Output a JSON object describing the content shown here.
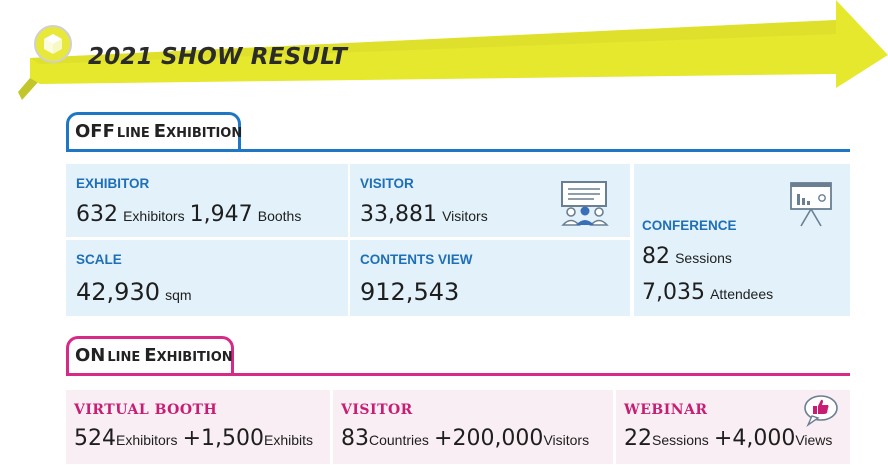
{
  "banner": {
    "title": "2021 SHOW RESULT",
    "icon": "cube-icon"
  },
  "offline": {
    "heading_big1": "OFF",
    "heading_small1": "LINE",
    "heading_big2": "E",
    "heading_small2": "XHIBITION",
    "exhibitor": {
      "label": "EXHIBITOR",
      "v1": "632",
      "u1": "Exhibitors",
      "v2": "1,947",
      "u2": "Booths"
    },
    "visitor": {
      "label": "VISITOR",
      "v1": "33,881",
      "u1": "Visitors",
      "icon": "presentation-audience-icon"
    },
    "scale": {
      "label": "SCALE",
      "v1": "42,930",
      "u1": "sqm"
    },
    "contents_view": {
      "label": "CONTENTS VIEW",
      "v1": "912,543"
    },
    "conference": {
      "label": "CONFERENCE",
      "v1": "82",
      "u1": "Sessions",
      "v2": "7,035",
      "u2": "Attendees",
      "icon": "chart-board-icon"
    }
  },
  "online": {
    "heading_big1": "ON",
    "heading_small1": "LINE",
    "heading_big2": "E",
    "heading_small2": "XHIBITION",
    "virtual_booth": {
      "label": "VIRTUAL BOOTH",
      "v1": "524",
      "u1": "Exhibitors",
      "v2": "+1,500",
      "u2": "Exhibits"
    },
    "visitor": {
      "label": "VISITOR",
      "v1": "83",
      "u1": "Countries",
      "v2": "+200,000",
      "u2": "Visitors"
    },
    "webinar": {
      "label": "WEBINAR",
      "v1": "22",
      "u1": "Sessions",
      "v2": "+4,000",
      "u2": "Views",
      "icon": "thumbs-up-bubble-icon"
    }
  },
  "colors": {
    "blue": "#1d77c4",
    "pink": "#d62a86",
    "banner_yellow": "#e8ea2c",
    "card_blue": "#e3f2fa",
    "card_pink": "#f9eef3"
  }
}
